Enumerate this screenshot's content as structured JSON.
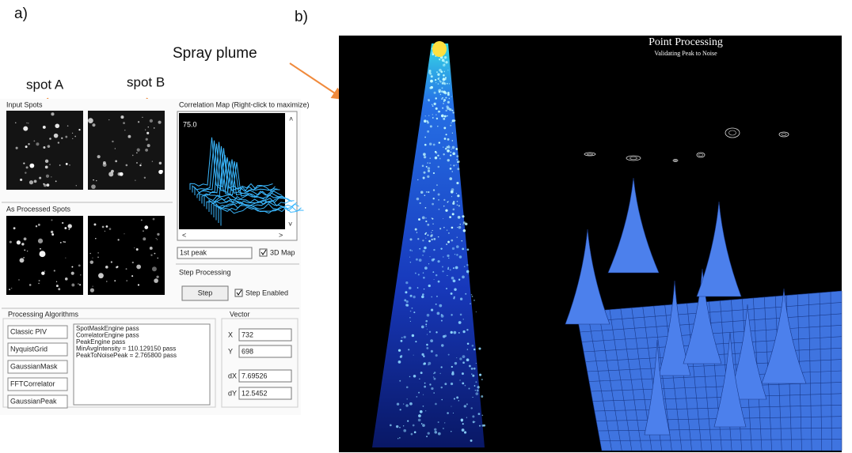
{
  "labels": {
    "panel_a": "a)",
    "panel_b": "b)",
    "spray_plume": "Spray plume",
    "spot_a": "spot A",
    "spot_b": "spot B"
  },
  "software": {
    "input_spots": "Input Spots",
    "correlation_map": {
      "title": "Correlation Map (Right-click to maximize)",
      "value": "75.0"
    },
    "processed_spots": "As Processed Spots",
    "peak_field": "1st peak",
    "map_checkbox": "3D Map",
    "step_processing": {
      "title": "Step Processing",
      "button": "Step",
      "checkbox": "Step Enabled"
    },
    "algorithms": {
      "title": "Processing Algorithms",
      "buttons": [
        "Classic PIV",
        "NyquistGrid",
        "GaussianMask",
        "FFTCorrelator",
        "GaussianPeak"
      ],
      "log": [
        "SpotMaskEngine  pass",
        "CorrelatorEngine  pass",
        "PeakEngine  pass",
        "MinAvgIntensity = 110.129150  pass",
        "PeakToNoisePeak = 2.765800  pass"
      ]
    },
    "vector": {
      "title": "Vector",
      "fields": [
        {
          "label": "X",
          "value": "732"
        },
        {
          "label": "Y",
          "value": "698"
        },
        {
          "label": "dX",
          "value": "7.69526"
        },
        {
          "label": "dY",
          "value": "12.5452"
        }
      ]
    }
  },
  "plot": {
    "title": "Point Processing",
    "subtitle": "Validating Peak to Noise"
  }
}
